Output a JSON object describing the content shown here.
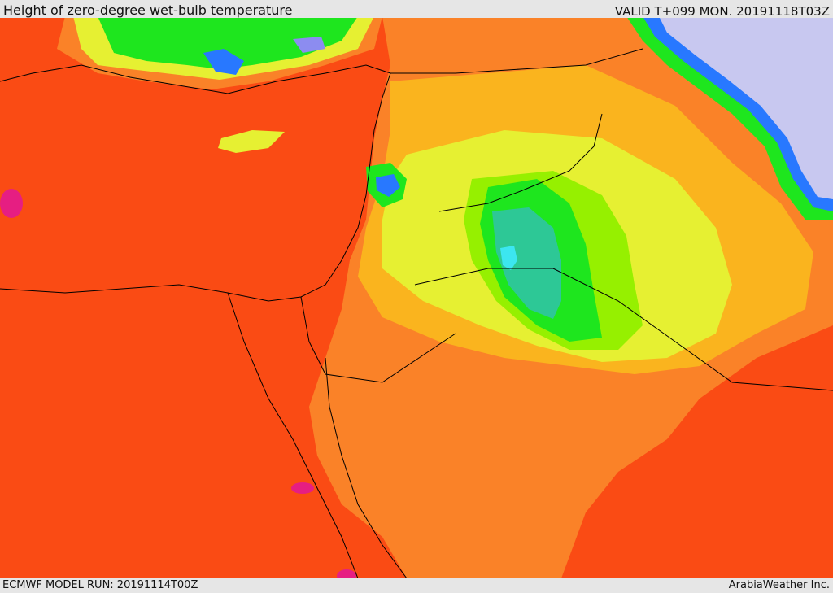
{
  "header": {
    "title": "Height of zero-degree wet-bulb temperature",
    "valid": "VALID T+099 MON. 20191118T03Z"
  },
  "footer": {
    "model_run": "ECMWF MODEL RUN: 20191114T00Z",
    "credit": "ArabiaWeather Inc."
  },
  "map": {
    "field": "zero-degree-wet-bulb-height",
    "colors": {
      "dark_orange": "#fa4b14",
      "orange": "#fa8228",
      "light_orange": "#fab41e",
      "yellow": "#e6f032",
      "lime": "#96f000",
      "green": "#1ee61e",
      "teal": "#2dc896",
      "cyan": "#3ce6f0",
      "blue": "#2878ff",
      "violet": "#8c8cf0",
      "lavender": "#c8c8f0",
      "magenta": "#e61e82",
      "coast_line": "#000000"
    }
  }
}
